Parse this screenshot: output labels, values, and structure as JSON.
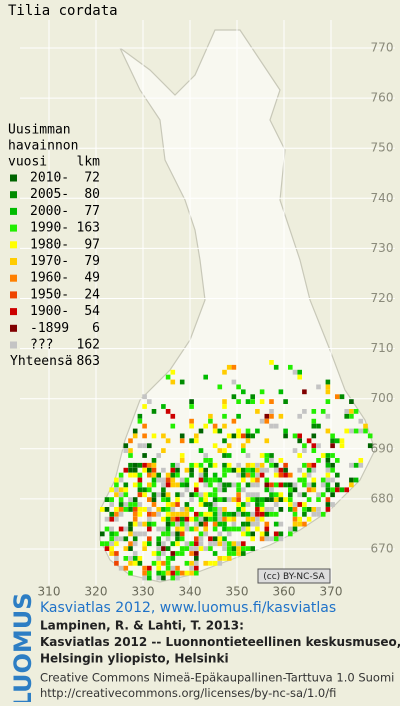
{
  "title": "Tilia cordata",
  "legend": {
    "heading": [
      "Uusimman",
      "havainnon",
      "vuosi"
    ],
    "count_heading": "lkm",
    "rows": [
      {
        "label": "2010-",
        "count": 72,
        "color": "#006400"
      },
      {
        "label": "2005-",
        "count": 80,
        "color": "#008c00"
      },
      {
        "label": "2000-",
        "count": 77,
        "color": "#00bb00"
      },
      {
        "label": "1990-",
        "count": 163,
        "color": "#22ee00"
      },
      {
        "label": "1980-",
        "count": 97,
        "color": "#ffff00"
      },
      {
        "label": "1970-",
        "count": 79,
        "color": "#ffcc00"
      },
      {
        "label": "1960-",
        "count": 49,
        "color": "#ff8000"
      },
      {
        "label": "1950-",
        "count": 24,
        "color": "#ee4400"
      },
      {
        "label": "1900-",
        "count": 54,
        "color": "#cc0000"
      },
      {
        "label": "-1899",
        "count": 6,
        "color": "#800000"
      },
      {
        "label": "???",
        "count": 162,
        "color": "#c4c4c4"
      }
    ],
    "total_label": "Yhteensä",
    "total": 863
  },
  "map": {
    "x_labels": [
      310,
      320,
      330,
      340,
      350,
      360,
      370
    ],
    "y_labels": [
      670,
      680,
      690,
      700,
      710,
      720,
      730,
      740,
      750,
      760,
      770
    ]
  },
  "badge": "(cc) BY-NC-SA",
  "logo": "LUOMUS",
  "footer": {
    "link": "Kasviatlas 2012, www.luomus.fi/kasviatlas",
    "citation": [
      "Lampinen, R. & Lahti, T. 2013:",
      "Kasviatlas 2012 -- Luonnontieteellinen keskusmuseo,",
      "Helsingin yliopisto, Helsinki"
    ],
    "license": [
      "Creative Commons Nimeä-Epäkaupallinen-Tarttuva 1.0 Suomi",
      "http://creativecommons.org/licenses/by-nc-sa/1.0/fi"
    ]
  }
}
